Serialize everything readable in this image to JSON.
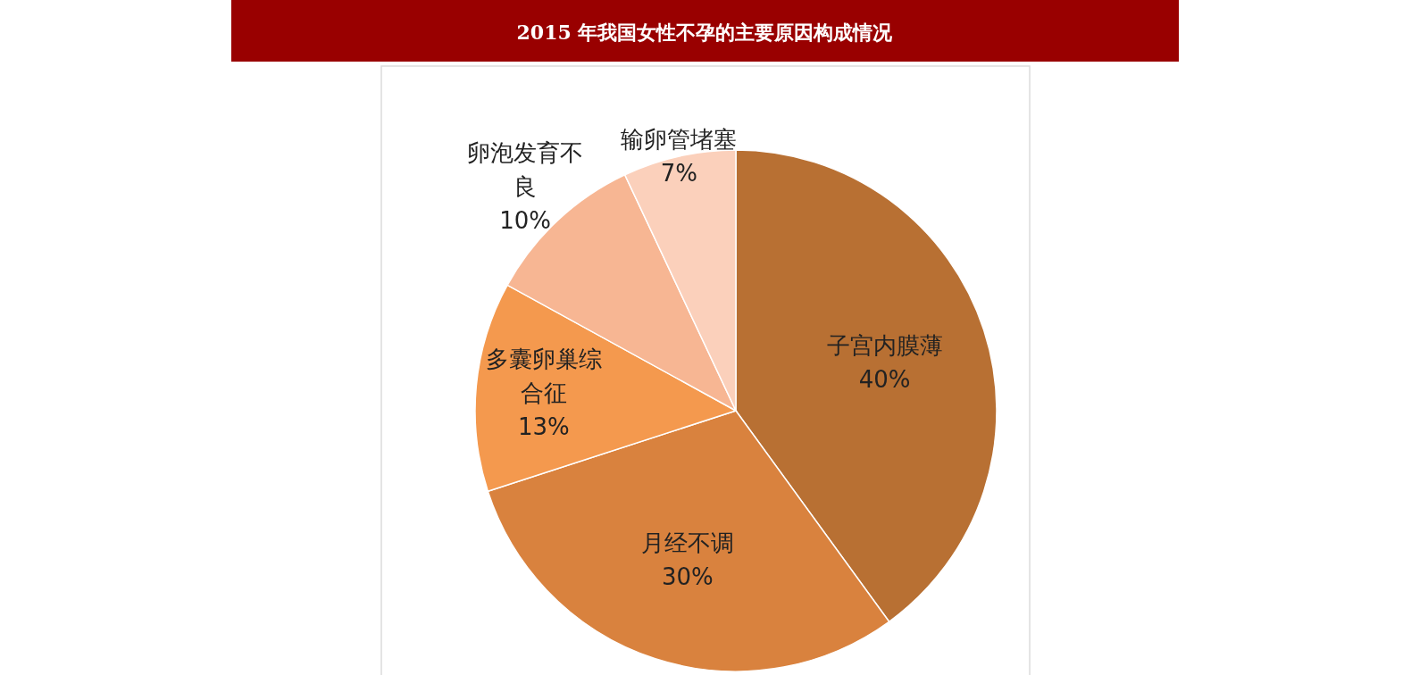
{
  "chart_data": {
    "type": "pie",
    "title": "2015 年我国女性不孕的主要原因构成情况",
    "categories": [
      "子宫内膜薄",
      "月经不调",
      "多囊卵巢综合征",
      "卵泡发育不良",
      "输卵管堵塞"
    ],
    "values": [
      40,
      30,
      13,
      10,
      7
    ],
    "colors": [
      "#b87033",
      "#d9823e",
      "#f4994e",
      "#f7b693",
      "#fbd0bb"
    ],
    "value_labels": [
      "40%",
      "30%",
      "13%",
      "10%",
      "7%"
    ]
  }
}
